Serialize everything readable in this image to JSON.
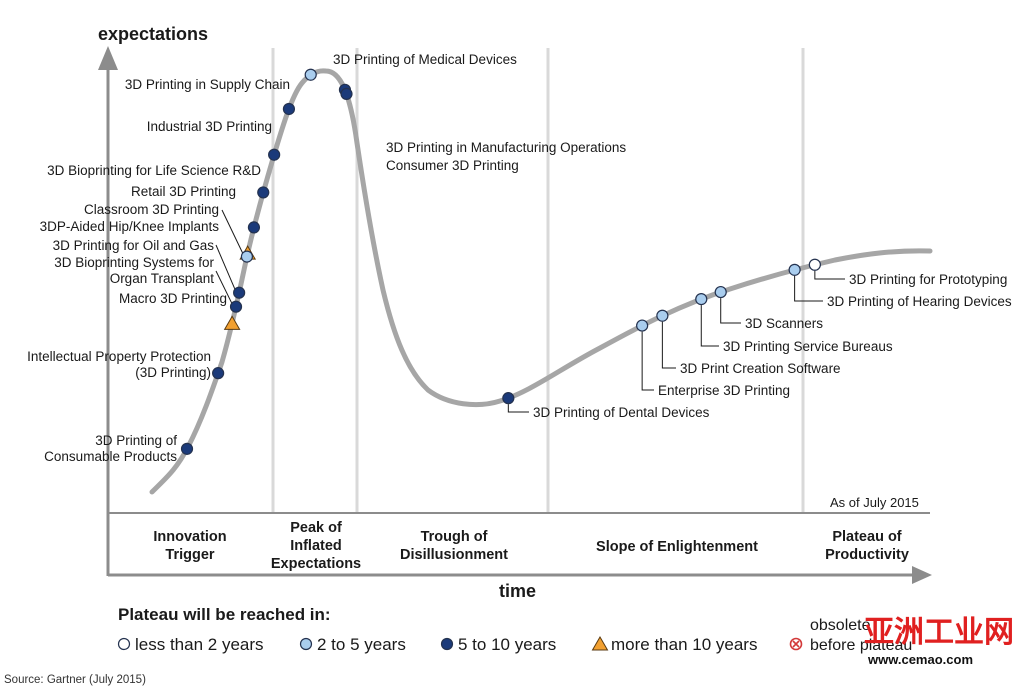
{
  "chart_data": {
    "type": "line",
    "title": "",
    "ylabel": "expectations",
    "xlabel": "time",
    "as_of": "As of July 2015",
    "source": "Source: Gartner (July 2015)",
    "phases": [
      "Innovation Trigger",
      "Peak of Inflated Expectations",
      "Trough of Disillusionment",
      "Slope of Enlightenment",
      "Plateau of Productivity"
    ],
    "legend": {
      "title": "Plateau will be reached in:",
      "items": [
        {
          "key": "lt2",
          "label": "less than 2 years"
        },
        {
          "key": "2to5",
          "label": "2 to 5 years"
        },
        {
          "key": "5to10",
          "label": "5 to 10 years"
        },
        {
          "key": "gt10",
          "label": "more than 10 years"
        },
        {
          "key": "obsolete",
          "label": "obsolete before plateau"
        }
      ]
    },
    "colors": {
      "curve": "#a6a6a6",
      "lt2": "#ffffff",
      "2to5": "#a9cdee",
      "5to10": "#1b3a7a",
      "gt10": "#f2a030",
      "obsolete": "#d33a3a",
      "phase_lines": "#d9d9d9",
      "axis": "#808080"
    },
    "curve_x_range": [
      0,
      100
    ],
    "technologies": [
      {
        "name": "3D Printing of Consumable Products",
        "lines": [
          "3D Printing of",
          "Consumable Products"
        ],
        "t": 4.5,
        "category": "5to10"
      },
      {
        "name": "Intellectual Property Protection (3D Printing)",
        "lines": [
          "Intellectual Property Protection",
          "(3D Printing)"
        ],
        "t": 8.5,
        "category": "5to10"
      },
      {
        "name": "Macro 3D Printing",
        "lines": [
          "Macro 3D Printing"
        ],
        "t": 10.3,
        "category": "gt10"
      },
      {
        "name": "3D Bioprinting Systems for Organ Transplant",
        "lines": [
          "3D Bioprinting Systems for",
          "Organ Transplant"
        ],
        "t": 10.8,
        "category": "5to10"
      },
      {
        "name": "3D Printing for Oil and Gas",
        "lines": [
          "3D Printing for Oil and Gas"
        ],
        "t": 11.2,
        "category": "5to10"
      },
      {
        "name": "3DP-Aided Hip/Knee Implants",
        "lines": [
          "3DP-Aided Hip/Knee Implants"
        ],
        "t": 12.3,
        "category": "gt10"
      },
      {
        "name": "Classroom 3D Printing",
        "lines": [
          "Classroom 3D Printing"
        ],
        "t": 12.2,
        "category": "2to5"
      },
      {
        "name": "Retail 3D Printing",
        "lines": [
          "Retail 3D Printing"
        ],
        "t": 13.1,
        "category": "5to10"
      },
      {
        "name": "3D Bioprinting for Life Science R&D",
        "lines": [
          "3D Bioprinting for Life Science R&D"
        ],
        "t": 14.3,
        "category": "5to10"
      },
      {
        "name": "Industrial 3D Printing",
        "lines": [
          "Industrial 3D Printing"
        ],
        "t": 15.7,
        "category": "5to10"
      },
      {
        "name": "3D Printing in Supply Chain",
        "lines": [
          "3D Printing in Supply Chain"
        ],
        "t": 17.6,
        "category": "5to10"
      },
      {
        "name": "3D Printing of Medical Devices",
        "lines": [
          "3D Printing of Medical Devices"
        ],
        "t": 20.4,
        "category": "2to5"
      },
      {
        "name": "3D Printing in Manufacturing Operations",
        "lines": [
          "3D Printing in Manufacturing Operations"
        ],
        "t": 24.8,
        "category": "5to10"
      },
      {
        "name": "Consumer 3D Printing",
        "lines": [
          "Consumer 3D Printing"
        ],
        "t": 25.0,
        "category": "5to10"
      },
      {
        "name": "3D Printing of Dental Devices",
        "lines": [
          "3D Printing of Dental Devices"
        ],
        "t": 45.8,
        "category": "5to10"
      },
      {
        "name": "Enterprise 3D Printing",
        "lines": [
          "Enterprise 3D Printing"
        ],
        "t": 63.0,
        "category": "2to5"
      },
      {
        "name": "3D Print Creation Software",
        "lines": [
          "3D Print Creation Software"
        ],
        "t": 65.6,
        "category": "2to5"
      },
      {
        "name": "3D Printing Service Bureaus",
        "lines": [
          "3D Printing Service Bureaus"
        ],
        "t": 70.6,
        "category": "2to5"
      },
      {
        "name": "3D Scanners",
        "lines": [
          "3D Scanners"
        ],
        "t": 73.1,
        "category": "2to5"
      },
      {
        "name": "3D Printing of Hearing Devices",
        "lines": [
          "3D Printing of Hearing Devices"
        ],
        "t": 82.6,
        "category": "2to5"
      },
      {
        "name": "3D Printing for Prototyping",
        "lines": [
          "3D Printing for Prototyping"
        ],
        "t": 85.2,
        "category": "lt2"
      }
    ]
  },
  "watermark": {
    "site_name": "亚洲工业网",
    "url": "www.cemao.com"
  }
}
